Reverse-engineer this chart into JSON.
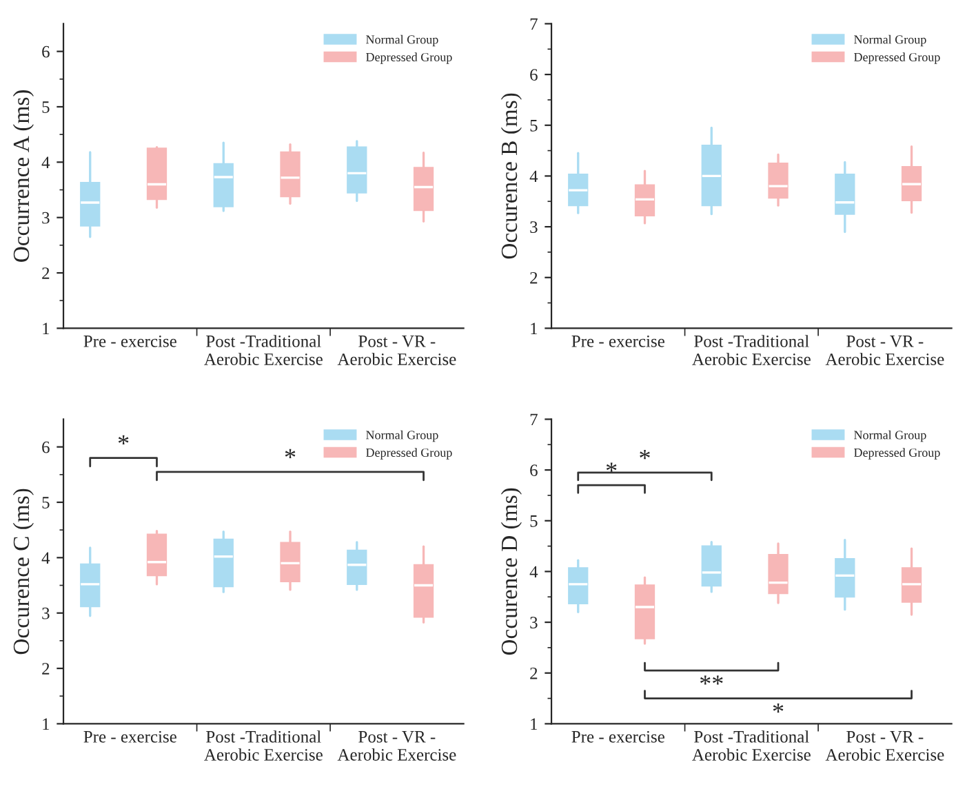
{
  "chart_data": [
    {
      "type": "box",
      "ylabel": "Occurrence A (ms)",
      "categories": [
        "Pre - exercise",
        "Post -Traditional\nAerobic Exercise",
        "Post - VR -\nAerobic Exercise"
      ],
      "ylim": [
        1,
        6.5
      ],
      "yticks": [
        1,
        2,
        3,
        4,
        5,
        6
      ],
      "legend": "top right",
      "series": [
        {
          "name": "Normal Group",
          "color": "#aadcf2",
          "boxes": [
            {
              "low": 2.65,
              "q1": 2.85,
              "median": 3.27,
              "q3": 3.63,
              "high": 4.18
            },
            {
              "low": 3.12,
              "q1": 3.2,
              "median": 3.73,
              "q3": 3.97,
              "high": 4.35
            },
            {
              "low": 3.3,
              "q1": 3.45,
              "median": 3.8,
              "q3": 4.27,
              "high": 4.38
            }
          ]
        },
        {
          "name": "Depressed Group",
          "color": "#f7b7b7",
          "boxes": [
            {
              "low": 3.18,
              "q1": 3.33,
              "median": 3.6,
              "q3": 4.25,
              "high": 4.27
            },
            {
              "low": 3.25,
              "q1": 3.38,
              "median": 3.72,
              "q3": 4.18,
              "high": 4.32
            },
            {
              "low": 2.93,
              "q1": 3.13,
              "median": 3.55,
              "q3": 3.9,
              "high": 4.17
            }
          ]
        }
      ]
    },
    {
      "type": "box",
      "ylabel": "Occurence B (ms)",
      "categories": [
        "Pre - exercise",
        "Post -Traditional\nAerobic Exercise",
        "Post - VR -\nAerobic Exercise"
      ],
      "ylim": [
        1,
        7
      ],
      "yticks": [
        1,
        2,
        3,
        4,
        5,
        6,
        7
      ],
      "legend": "top right",
      "series": [
        {
          "name": "Normal Group",
          "color": "#aadcf2",
          "boxes": [
            {
              "low": 3.27,
              "q1": 3.42,
              "median": 3.72,
              "q3": 4.03,
              "high": 4.45
            },
            {
              "low": 3.25,
              "q1": 3.42,
              "median": 4.0,
              "q3": 4.6,
              "high": 4.95
            },
            {
              "low": 2.9,
              "q1": 3.25,
              "median": 3.48,
              "q3": 4.03,
              "high": 4.27
            }
          ]
        },
        {
          "name": "Depressed Group",
          "color": "#f7b7b7",
          "boxes": [
            {
              "low": 3.07,
              "q1": 3.22,
              "median": 3.54,
              "q3": 3.82,
              "high": 4.1
            },
            {
              "low": 3.42,
              "q1": 3.57,
              "median": 3.8,
              "q3": 4.25,
              "high": 4.42
            },
            {
              "low": 3.28,
              "q1": 3.52,
              "median": 3.84,
              "q3": 4.18,
              "high": 4.58
            }
          ]
        }
      ]
    },
    {
      "type": "box",
      "ylabel": "Occurence C (ms)",
      "categories": [
        "Pre - exercise",
        "Post -Traditional\nAerobic Exercise",
        "Post - VR -\nAerobic Exercise"
      ],
      "ylim": [
        1,
        6.5
      ],
      "yticks": [
        1,
        2,
        3,
        4,
        5,
        6
      ],
      "legend": "top right",
      "annotations": [
        "*",
        "*"
      ],
      "series": [
        {
          "name": "Normal Group",
          "color": "#aadcf2",
          "boxes": [
            {
              "low": 2.95,
              "q1": 3.12,
              "median": 3.52,
              "q3": 3.88,
              "high": 4.18
            },
            {
              "low": 3.38,
              "q1": 3.48,
              "median": 4.02,
              "q3": 4.33,
              "high": 4.47
            },
            {
              "low": 3.42,
              "q1": 3.52,
              "median": 3.87,
              "q3": 4.13,
              "high": 4.28
            }
          ]
        },
        {
          "name": "Depressed Group",
          "color": "#f7b7b7",
          "boxes": [
            {
              "low": 3.52,
              "q1": 3.68,
              "median": 3.92,
              "q3": 4.42,
              "high": 4.48
            },
            {
              "low": 3.42,
              "q1": 3.57,
              "median": 3.9,
              "q3": 4.27,
              "high": 4.47
            },
            {
              "low": 2.83,
              "q1": 2.93,
              "median": 3.5,
              "q3": 3.87,
              "high": 4.2
            }
          ]
        }
      ]
    },
    {
      "type": "box",
      "ylabel": "Occurence D (ms)",
      "categories": [
        "Pre - exercise",
        "Post -Traditional\nAerobic Exercise",
        "Post - VR -\nAerobic Exercise"
      ],
      "ylim": [
        1,
        7
      ],
      "yticks": [
        1,
        2,
        3,
        4,
        5,
        6,
        7
      ],
      "legend": "top right",
      "annotations": [
        "*",
        "*",
        "**",
        "*"
      ],
      "series": [
        {
          "name": "Normal Group",
          "color": "#aadcf2",
          "boxes": [
            {
              "low": 3.2,
              "q1": 3.37,
              "median": 3.75,
              "q3": 4.07,
              "high": 4.22
            },
            {
              "low": 3.6,
              "q1": 3.72,
              "median": 3.98,
              "q3": 4.5,
              "high": 4.58
            },
            {
              "low": 3.25,
              "q1": 3.5,
              "median": 3.92,
              "q3": 4.25,
              "high": 4.62
            }
          ]
        },
        {
          "name": "Depressed Group",
          "color": "#f7b7b7",
          "boxes": [
            {
              "low": 2.58,
              "q1": 2.68,
              "median": 3.3,
              "q3": 3.73,
              "high": 3.88
            },
            {
              "low": 3.38,
              "q1": 3.57,
              "median": 3.78,
              "q3": 4.33,
              "high": 4.55
            },
            {
              "low": 3.15,
              "q1": 3.4,
              "median": 3.75,
              "q3": 4.07,
              "high": 4.45
            }
          ]
        }
      ]
    }
  ]
}
